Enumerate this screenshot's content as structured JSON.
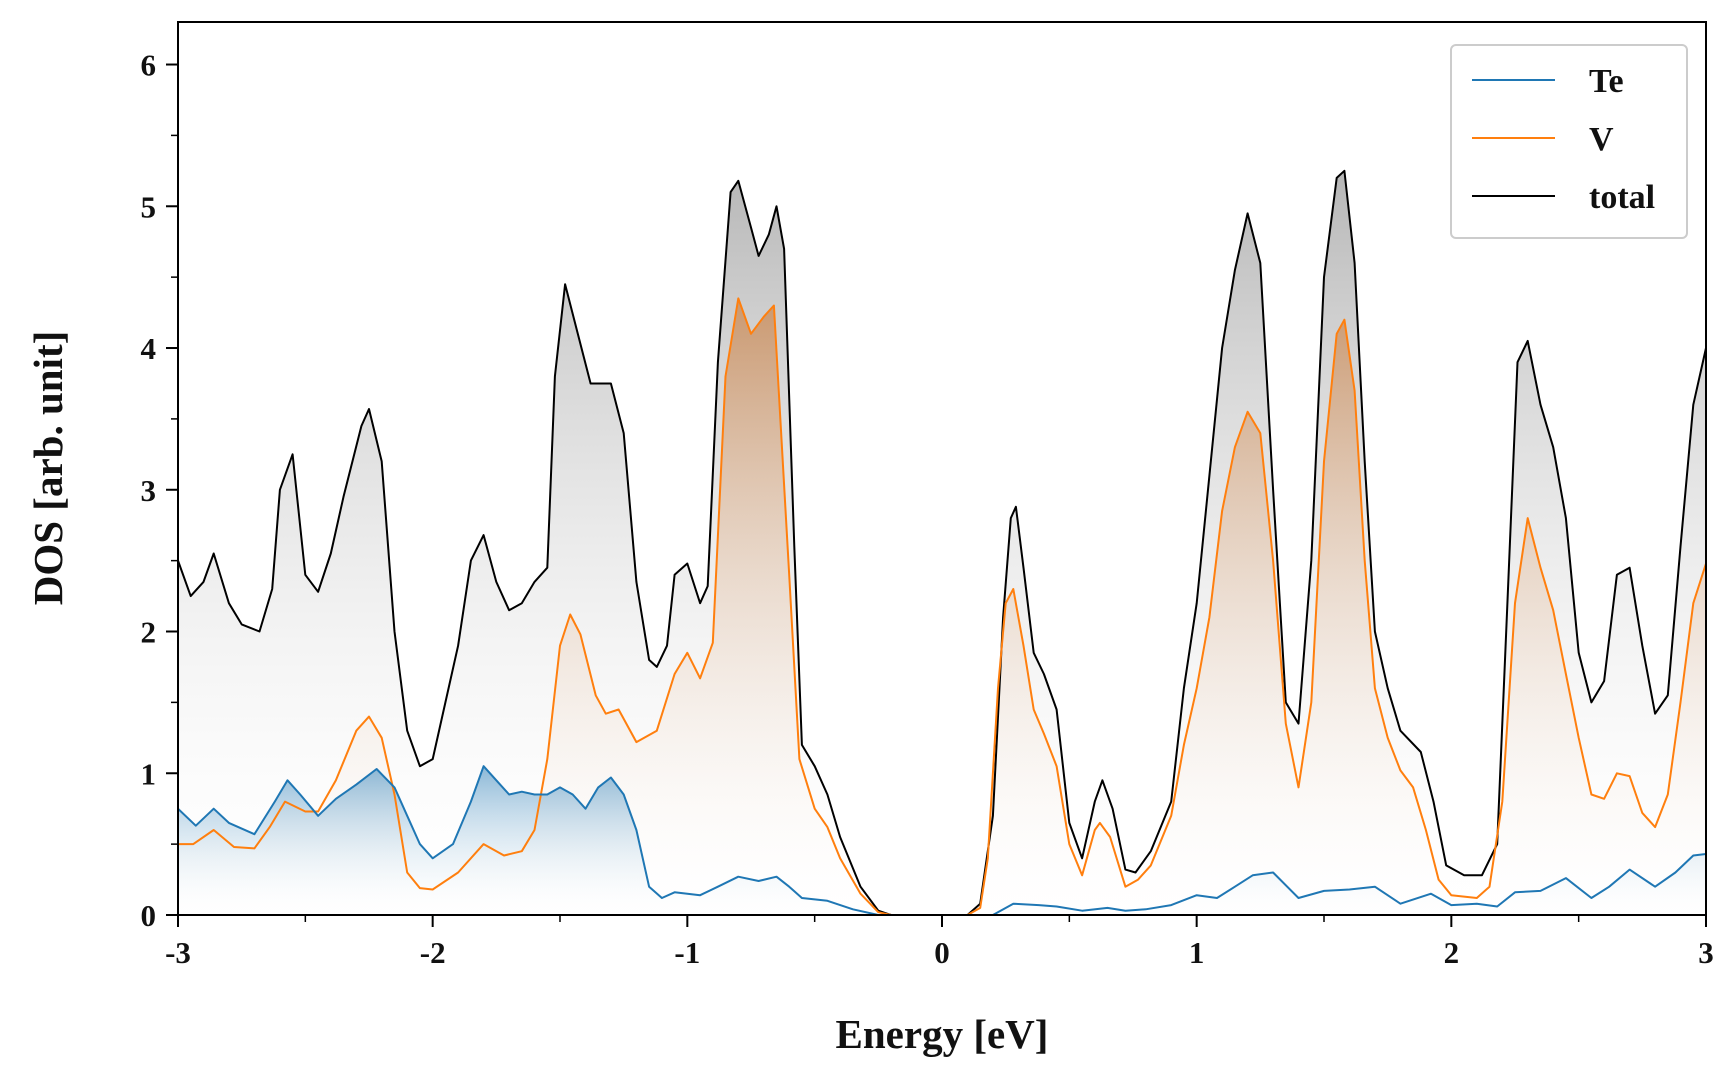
{
  "chart_data": {
    "type": "area",
    "title": "",
    "xlabel": "Energy [eV]",
    "ylabel": "DOS [arb. unit]",
    "xlim": [
      -3,
      3
    ],
    "ylim": [
      0,
      6.3
    ],
    "xticks": [
      -3,
      -2,
      -1,
      0,
      1,
      2,
      3
    ],
    "xtick_labels": [
      "-3",
      "-2",
      "-1",
      "0",
      "1",
      "2",
      "3"
    ],
    "yticks": [
      0,
      1,
      2,
      3,
      4,
      5,
      6
    ],
    "ytick_labels": [
      "0",
      "1",
      "2",
      "3",
      "4",
      "5",
      "6"
    ],
    "legend_position": "top-right",
    "series": [
      {
        "name": "Te",
        "color": "#1f77b4",
        "points": [
          [
            -3.0,
            0.75
          ],
          [
            -2.93,
            0.63
          ],
          [
            -2.86,
            0.75
          ],
          [
            -2.8,
            0.65
          ],
          [
            -2.7,
            0.57
          ],
          [
            -2.62,
            0.8
          ],
          [
            -2.57,
            0.95
          ],
          [
            -2.52,
            0.85
          ],
          [
            -2.45,
            0.7
          ],
          [
            -2.38,
            0.82
          ],
          [
            -2.3,
            0.92
          ],
          [
            -2.22,
            1.03
          ],
          [
            -2.15,
            0.9
          ],
          [
            -2.1,
            0.7
          ],
          [
            -2.05,
            0.5
          ],
          [
            -2.0,
            0.4
          ],
          [
            -1.92,
            0.5
          ],
          [
            -1.85,
            0.8
          ],
          [
            -1.8,
            1.05
          ],
          [
            -1.75,
            0.95
          ],
          [
            -1.7,
            0.85
          ],
          [
            -1.65,
            0.87
          ],
          [
            -1.6,
            0.85
          ],
          [
            -1.55,
            0.85
          ],
          [
            -1.5,
            0.9
          ],
          [
            -1.45,
            0.85
          ],
          [
            -1.4,
            0.75
          ],
          [
            -1.35,
            0.9
          ],
          [
            -1.3,
            0.97
          ],
          [
            -1.25,
            0.85
          ],
          [
            -1.2,
            0.6
          ],
          [
            -1.15,
            0.2
          ],
          [
            -1.1,
            0.12
          ],
          [
            -1.05,
            0.16
          ],
          [
            -0.95,
            0.14
          ],
          [
            -0.88,
            0.2
          ],
          [
            -0.8,
            0.27
          ],
          [
            -0.72,
            0.24
          ],
          [
            -0.65,
            0.27
          ],
          [
            -0.6,
            0.2
          ],
          [
            -0.55,
            0.12
          ],
          [
            -0.45,
            0.1
          ],
          [
            -0.35,
            0.04
          ],
          [
            -0.25,
            0.0
          ],
          [
            0.0,
            0.0
          ],
          [
            0.2,
            0.0
          ],
          [
            0.28,
            0.08
          ],
          [
            0.38,
            0.07
          ],
          [
            0.45,
            0.06
          ],
          [
            0.55,
            0.03
          ],
          [
            0.65,
            0.05
          ],
          [
            0.72,
            0.03
          ],
          [
            0.8,
            0.04
          ],
          [
            0.9,
            0.07
          ],
          [
            1.0,
            0.14
          ],
          [
            1.08,
            0.12
          ],
          [
            1.15,
            0.2
          ],
          [
            1.22,
            0.28
          ],
          [
            1.3,
            0.3
          ],
          [
            1.4,
            0.12
          ],
          [
            1.5,
            0.17
          ],
          [
            1.6,
            0.18
          ],
          [
            1.7,
            0.2
          ],
          [
            1.8,
            0.08
          ],
          [
            1.92,
            0.15
          ],
          [
            2.0,
            0.07
          ],
          [
            2.1,
            0.08
          ],
          [
            2.18,
            0.06
          ],
          [
            2.25,
            0.16
          ],
          [
            2.35,
            0.17
          ],
          [
            2.45,
            0.26
          ],
          [
            2.55,
            0.12
          ],
          [
            2.62,
            0.2
          ],
          [
            2.7,
            0.32
          ],
          [
            2.8,
            0.2
          ],
          [
            2.88,
            0.3
          ],
          [
            2.95,
            0.42
          ],
          [
            3.0,
            0.43
          ]
        ]
      },
      {
        "name": "V",
        "color": "#ff7f0e",
        "points": [
          [
            -3.0,
            0.5
          ],
          [
            -2.94,
            0.5
          ],
          [
            -2.86,
            0.6
          ],
          [
            -2.78,
            0.48
          ],
          [
            -2.7,
            0.47
          ],
          [
            -2.64,
            0.62
          ],
          [
            -2.58,
            0.8
          ],
          [
            -2.5,
            0.73
          ],
          [
            -2.45,
            0.73
          ],
          [
            -2.38,
            0.95
          ],
          [
            -2.3,
            1.3
          ],
          [
            -2.25,
            1.4
          ],
          [
            -2.2,
            1.25
          ],
          [
            -2.15,
            0.85
          ],
          [
            -2.1,
            0.3
          ],
          [
            -2.05,
            0.19
          ],
          [
            -2.0,
            0.18
          ],
          [
            -1.9,
            0.3
          ],
          [
            -1.8,
            0.5
          ],
          [
            -1.72,
            0.42
          ],
          [
            -1.65,
            0.45
          ],
          [
            -1.6,
            0.6
          ],
          [
            -1.55,
            1.1
          ],
          [
            -1.5,
            1.9
          ],
          [
            -1.46,
            2.12
          ],
          [
            -1.42,
            1.98
          ],
          [
            -1.36,
            1.55
          ],
          [
            -1.32,
            1.42
          ],
          [
            -1.27,
            1.45
          ],
          [
            -1.2,
            1.22
          ],
          [
            -1.12,
            1.3
          ],
          [
            -1.05,
            1.7
          ],
          [
            -1.0,
            1.85
          ],
          [
            -0.95,
            1.67
          ],
          [
            -0.9,
            1.92
          ],
          [
            -0.85,
            3.8
          ],
          [
            -0.8,
            4.35
          ],
          [
            -0.75,
            4.1
          ],
          [
            -0.7,
            4.22
          ],
          [
            -0.66,
            4.3
          ],
          [
            -0.6,
            2.4
          ],
          [
            -0.56,
            1.1
          ],
          [
            -0.5,
            0.75
          ],
          [
            -0.45,
            0.62
          ],
          [
            -0.4,
            0.4
          ],
          [
            -0.32,
            0.15
          ],
          [
            -0.25,
            0.02
          ],
          [
            -0.2,
            0.0
          ],
          [
            0.0,
            0.0
          ],
          [
            0.1,
            0.0
          ],
          [
            0.15,
            0.05
          ],
          [
            0.18,
            0.4
          ],
          [
            0.22,
            1.6
          ],
          [
            0.25,
            2.2
          ],
          [
            0.28,
            2.3
          ],
          [
            0.32,
            1.9
          ],
          [
            0.36,
            1.45
          ],
          [
            0.4,
            1.28
          ],
          [
            0.45,
            1.05
          ],
          [
            0.5,
            0.5
          ],
          [
            0.55,
            0.28
          ],
          [
            0.6,
            0.6
          ],
          [
            0.62,
            0.65
          ],
          [
            0.66,
            0.55
          ],
          [
            0.72,
            0.2
          ],
          [
            0.77,
            0.25
          ],
          [
            0.82,
            0.35
          ],
          [
            0.9,
            0.7
          ],
          [
            0.95,
            1.2
          ],
          [
            1.0,
            1.6
          ],
          [
            1.05,
            2.1
          ],
          [
            1.1,
            2.85
          ],
          [
            1.15,
            3.3
          ],
          [
            1.2,
            3.55
          ],
          [
            1.25,
            3.4
          ],
          [
            1.3,
            2.5
          ],
          [
            1.35,
            1.35
          ],
          [
            1.4,
            0.9
          ],
          [
            1.45,
            1.5
          ],
          [
            1.5,
            3.2
          ],
          [
            1.55,
            4.1
          ],
          [
            1.58,
            4.2
          ],
          [
            1.62,
            3.7
          ],
          [
            1.66,
            2.5
          ],
          [
            1.7,
            1.6
          ],
          [
            1.75,
            1.25
          ],
          [
            1.8,
            1.02
          ],
          [
            1.85,
            0.9
          ],
          [
            1.9,
            0.6
          ],
          [
            1.95,
            0.25
          ],
          [
            2.0,
            0.14
          ],
          [
            2.1,
            0.12
          ],
          [
            2.15,
            0.2
          ],
          [
            2.2,
            0.8
          ],
          [
            2.25,
            2.2
          ],
          [
            2.3,
            2.8
          ],
          [
            2.35,
            2.45
          ],
          [
            2.4,
            2.15
          ],
          [
            2.45,
            1.7
          ],
          [
            2.5,
            1.25
          ],
          [
            2.55,
            0.85
          ],
          [
            2.6,
            0.82
          ],
          [
            2.65,
            1.0
          ],
          [
            2.7,
            0.98
          ],
          [
            2.75,
            0.72
          ],
          [
            2.8,
            0.62
          ],
          [
            2.85,
            0.85
          ],
          [
            2.9,
            1.5
          ],
          [
            2.95,
            2.2
          ],
          [
            3.0,
            2.48
          ]
        ]
      },
      {
        "name": "total",
        "color": "#000000",
        "points": [
          [
            -3.0,
            2.5
          ],
          [
            -2.95,
            2.25
          ],
          [
            -2.9,
            2.35
          ],
          [
            -2.86,
            2.55
          ],
          [
            -2.8,
            2.2
          ],
          [
            -2.75,
            2.05
          ],
          [
            -2.68,
            2.0
          ],
          [
            -2.63,
            2.3
          ],
          [
            -2.6,
            3.0
          ],
          [
            -2.55,
            3.25
          ],
          [
            -2.5,
            2.4
          ],
          [
            -2.45,
            2.28
          ],
          [
            -2.4,
            2.55
          ],
          [
            -2.35,
            2.95
          ],
          [
            -2.28,
            3.45
          ],
          [
            -2.25,
            3.57
          ],
          [
            -2.2,
            3.2
          ],
          [
            -2.15,
            2.0
          ],
          [
            -2.1,
            1.3
          ],
          [
            -2.05,
            1.05
          ],
          [
            -2.0,
            1.1
          ],
          [
            -1.95,
            1.5
          ],
          [
            -1.9,
            1.9
          ],
          [
            -1.85,
            2.5
          ],
          [
            -1.8,
            2.68
          ],
          [
            -1.75,
            2.35
          ],
          [
            -1.7,
            2.15
          ],
          [
            -1.65,
            2.2
          ],
          [
            -1.6,
            2.35
          ],
          [
            -1.55,
            2.45
          ],
          [
            -1.52,
            3.8
          ],
          [
            -1.48,
            4.45
          ],
          [
            -1.43,
            4.1
          ],
          [
            -1.38,
            3.75
          ],
          [
            -1.3,
            3.75
          ],
          [
            -1.25,
            3.4
          ],
          [
            -1.2,
            2.35
          ],
          [
            -1.15,
            1.8
          ],
          [
            -1.12,
            1.75
          ],
          [
            -1.08,
            1.9
          ],
          [
            -1.05,
            2.4
          ],
          [
            -1.0,
            2.48
          ],
          [
            -0.95,
            2.2
          ],
          [
            -0.92,
            2.32
          ],
          [
            -0.88,
            3.9
          ],
          [
            -0.83,
            5.1
          ],
          [
            -0.8,
            5.18
          ],
          [
            -0.75,
            4.85
          ],
          [
            -0.72,
            4.65
          ],
          [
            -0.68,
            4.8
          ],
          [
            -0.65,
            5.0
          ],
          [
            -0.62,
            4.7
          ],
          [
            -0.58,
            2.6
          ],
          [
            -0.55,
            1.2
          ],
          [
            -0.5,
            1.05
          ],
          [
            -0.45,
            0.85
          ],
          [
            -0.4,
            0.55
          ],
          [
            -0.32,
            0.2
          ],
          [
            -0.25,
            0.03
          ],
          [
            -0.2,
            0.0
          ],
          [
            0.0,
            0.0
          ],
          [
            0.1,
            0.0
          ],
          [
            0.15,
            0.08
          ],
          [
            0.2,
            0.7
          ],
          [
            0.24,
            2.1
          ],
          [
            0.27,
            2.8
          ],
          [
            0.29,
            2.88
          ],
          [
            0.32,
            2.45
          ],
          [
            0.36,
            1.85
          ],
          [
            0.4,
            1.7
          ],
          [
            0.45,
            1.45
          ],
          [
            0.5,
            0.65
          ],
          [
            0.55,
            0.4
          ],
          [
            0.6,
            0.8
          ],
          [
            0.63,
            0.95
          ],
          [
            0.67,
            0.75
          ],
          [
            0.72,
            0.32
          ],
          [
            0.76,
            0.3
          ],
          [
            0.82,
            0.45
          ],
          [
            0.9,
            0.8
          ],
          [
            0.95,
            1.6
          ],
          [
            1.0,
            2.2
          ],
          [
            1.05,
            3.1
          ],
          [
            1.1,
            4.0
          ],
          [
            1.15,
            4.55
          ],
          [
            1.2,
            4.95
          ],
          [
            1.25,
            4.6
          ],
          [
            1.3,
            3.0
          ],
          [
            1.35,
            1.5
          ],
          [
            1.4,
            1.35
          ],
          [
            1.45,
            2.5
          ],
          [
            1.5,
            4.5
          ],
          [
            1.55,
            5.2
          ],
          [
            1.58,
            5.25
          ],
          [
            1.62,
            4.6
          ],
          [
            1.66,
            3.2
          ],
          [
            1.7,
            2.0
          ],
          [
            1.75,
            1.6
          ],
          [
            1.8,
            1.3
          ],
          [
            1.88,
            1.15
          ],
          [
            1.93,
            0.8
          ],
          [
            1.98,
            0.35
          ],
          [
            2.05,
            0.28
          ],
          [
            2.12,
            0.28
          ],
          [
            2.18,
            0.5
          ],
          [
            2.22,
            2.2
          ],
          [
            2.26,
            3.9
          ],
          [
            2.3,
            4.05
          ],
          [
            2.35,
            3.6
          ],
          [
            2.4,
            3.3
          ],
          [
            2.45,
            2.8
          ],
          [
            2.5,
            1.85
          ],
          [
            2.55,
            1.5
          ],
          [
            2.6,
            1.65
          ],
          [
            2.65,
            2.4
          ],
          [
            2.7,
            2.45
          ],
          [
            2.75,
            1.9
          ],
          [
            2.8,
            1.42
          ],
          [
            2.85,
            1.55
          ],
          [
            2.9,
            2.6
          ],
          [
            2.95,
            3.6
          ],
          [
            3.0,
            4.0
          ]
        ]
      }
    ]
  }
}
